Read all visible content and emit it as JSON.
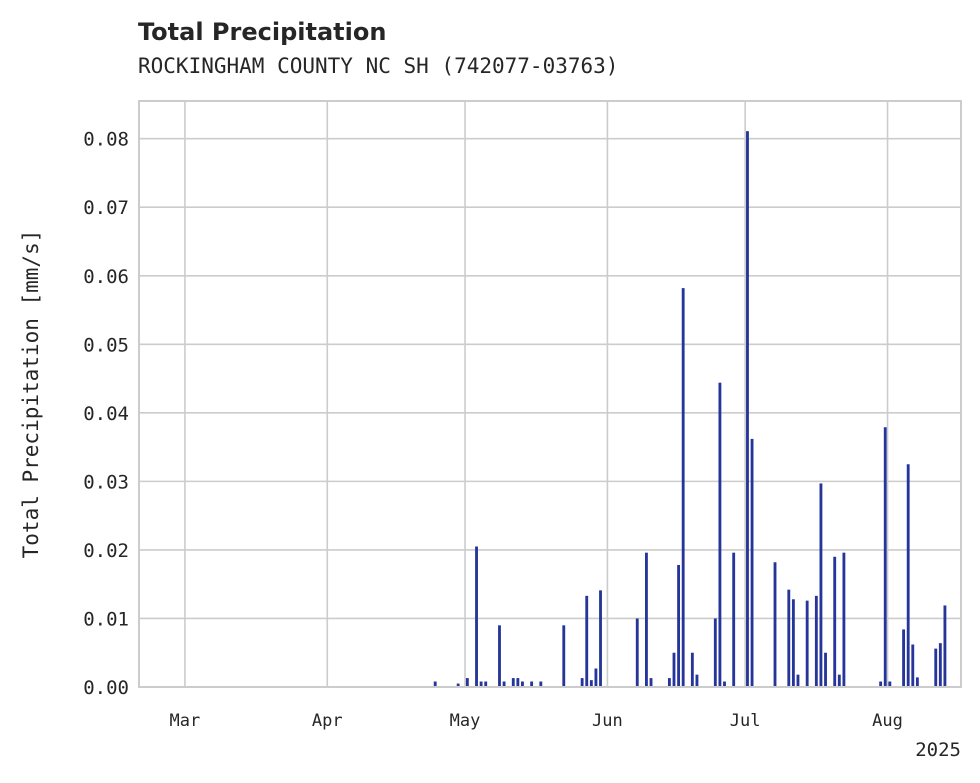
{
  "chart_data": {
    "type": "bar",
    "title": "Total Precipitation",
    "subtitle": "ROCKINGHAM COUNTY NC SH (742077-03763)",
    "ylabel": "Total Precipitation [mm/s]",
    "xlabel": "",
    "ylim": [
      0,
      0.0855
    ],
    "yticks": [
      "0.00",
      "0.01",
      "0.02",
      "0.03",
      "0.04",
      "0.05",
      "0.06",
      "0.07",
      "0.08"
    ],
    "xlim": [
      "2025-02-19",
      "2025-08-17"
    ],
    "xticks": [
      {
        "date": "2025-03-01",
        "label": "Mar"
      },
      {
        "date": "2025-04-01",
        "label": "Apr"
      },
      {
        "date": "2025-05-01",
        "label": "May"
      },
      {
        "date": "2025-06-01",
        "label": "Jun"
      },
      {
        "date": "2025-07-01",
        "label": "Jul"
      },
      {
        "date": "2025-08-01",
        "label": "Aug"
      }
    ],
    "year_label": "2025",
    "grid": true,
    "color": "#26359a",
    "series": [
      {
        "x": [
          "2025-04-24",
          "2025-04-29",
          "2025-05-01",
          "2025-05-03",
          "2025-05-04",
          "2025-05-05",
          "2025-05-08",
          "2025-05-09",
          "2025-05-11",
          "2025-05-12",
          "2025-05-13",
          "2025-05-15",
          "2025-05-17",
          "2025-05-22",
          "2025-05-26",
          "2025-05-27",
          "2025-05-28",
          "2025-05-29",
          "2025-05-30",
          "2025-06-07",
          "2025-06-09",
          "2025-06-10",
          "2025-06-14",
          "2025-06-15",
          "2025-06-16",
          "2025-06-17",
          "2025-06-19",
          "2025-06-20",
          "2025-06-24",
          "2025-06-25",
          "2025-06-26",
          "2025-06-28",
          "2025-07-01",
          "2025-07-02",
          "2025-07-07",
          "2025-07-10",
          "2025-07-11",
          "2025-07-12",
          "2025-07-14",
          "2025-07-16",
          "2025-07-17",
          "2025-07-18",
          "2025-07-20",
          "2025-07-21",
          "2025-07-22",
          "2025-07-30",
          "2025-07-31",
          "2025-08-01",
          "2025-08-04",
          "2025-08-05",
          "2025-08-06",
          "2025-08-07",
          "2025-08-11",
          "2025-08-12",
          "2025-08-13"
        ],
        "values": [
          0.0008,
          0.0005,
          0.0013,
          0.0205,
          0.0008,
          0.0008,
          0.009,
          0.0008,
          0.0013,
          0.0013,
          0.0008,
          0.0008,
          0.0008,
          0.009,
          0.0013,
          0.0133,
          0.001,
          0.0027,
          0.0141,
          0.01,
          0.0196,
          0.0013,
          0.0013,
          0.005,
          0.0178,
          0.0582,
          0.005,
          0.0018,
          0.01,
          0.0444,
          0.0008,
          0.0196,
          0.0811,
          0.0362,
          0.0182,
          0.0142,
          0.0128,
          0.0018,
          0.0126,
          0.0133,
          0.0297,
          0.005,
          0.019,
          0.0018,
          0.0196,
          0.0008,
          0.0379,
          0.0008,
          0.0084,
          0.0325,
          0.0062,
          0.0014,
          0.0056,
          0.0064,
          0.0119
        ]
      }
    ]
  }
}
